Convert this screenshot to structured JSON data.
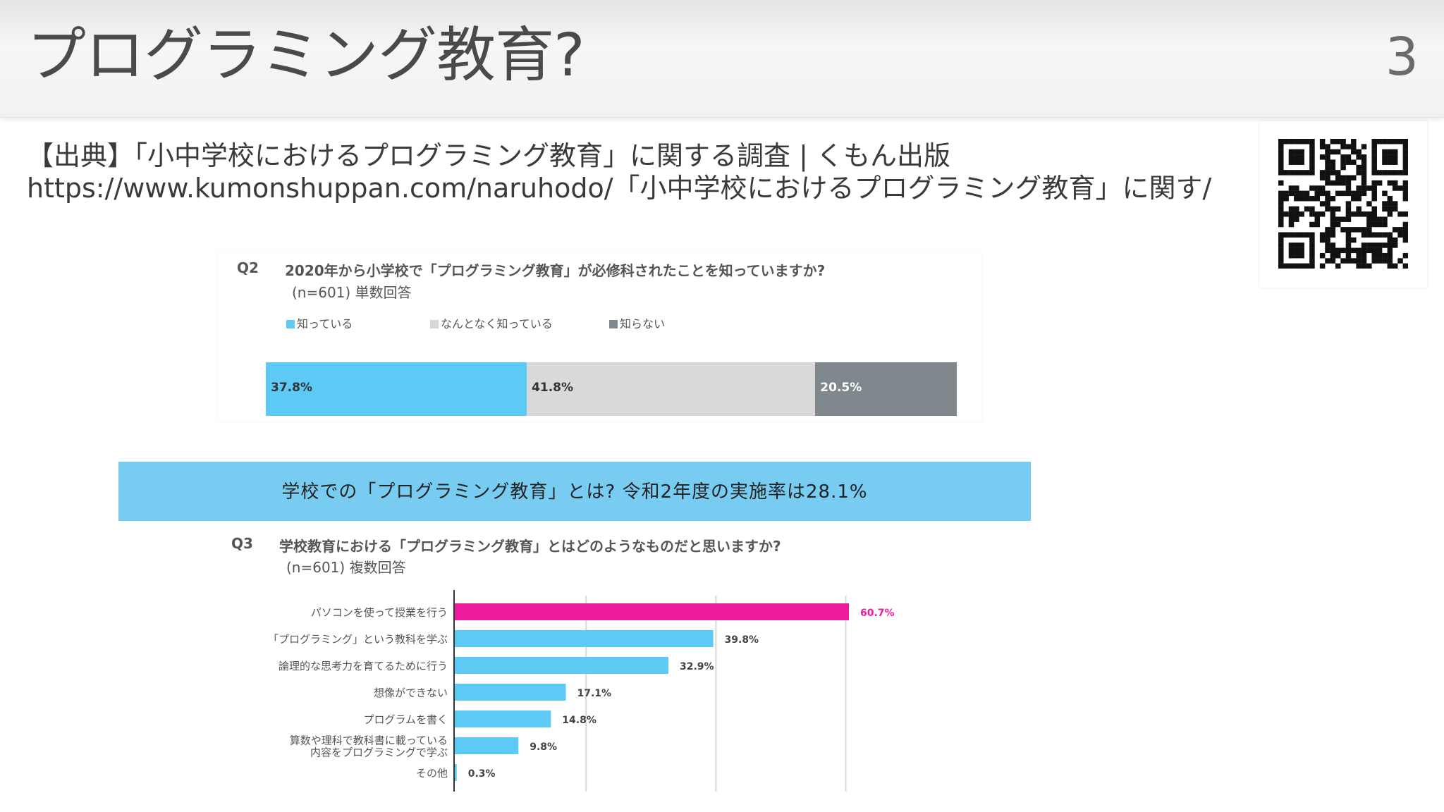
{
  "slide": {
    "title": "プログラミング教育?",
    "page_number": "3"
  },
  "source": {
    "line1": "【出典】「小中学校におけるプログラミング教育」に関する調査 | くもん出版",
    "line2": "https://www.kumonshuppan.com/naruhodo/「小中学校におけるプログラミング教育」に関す/"
  },
  "qr": {
    "icon": "qr-code-icon"
  },
  "chart_data": [
    {
      "type": "bar",
      "orientation": "horizontal-stacked",
      "question_label": "Q2",
      "title": "2020年から小学校で「プログラミング教育」が必修科されたことを知っていますか?",
      "subtitle": "(n=601) 単数回答",
      "legend_position": "top-left",
      "series": [
        {
          "name": "知っている",
          "value": 37.8,
          "label": "37.8%",
          "color": "#5ccaf5"
        },
        {
          "name": "なんとなく知っている",
          "value": 41.8,
          "label": "41.8%",
          "color": "#d9d9d9"
        },
        {
          "name": "知らない",
          "value": 20.5,
          "label": "20.5%",
          "color": "#7f888c"
        }
      ]
    },
    {
      "type": "bar",
      "orientation": "horizontal",
      "banner": "学校での「プログラミング教育」とは? 令和2年度の実施率は28.1%",
      "question_label": "Q3",
      "title": "学校教育における「プログラミング教育」とはどのようなものだと思いますか?",
      "subtitle": "(n=601) 複数回答",
      "xlim": [
        0,
        70
      ],
      "grid": true,
      "categories": [
        [
          "パソコンを使って授業を行う"
        ],
        [
          "「プログラミング」という教科を学ぶ"
        ],
        [
          "論理的な思考力を育てるために行う"
        ],
        [
          "想像ができない"
        ],
        [
          "プログラムを書く"
        ],
        [
          "算数や理科で教科書に載っている",
          "内容をプログラミングで学ぶ"
        ],
        [
          "その他"
        ]
      ],
      "values": [
        60.7,
        39.8,
        32.9,
        17.1,
        14.8,
        9.8,
        0.3
      ],
      "value_labels": [
        "60.7%",
        "39.8%",
        "32.9%",
        "17.1%",
        "14.8%",
        "9.8%",
        "0.3%"
      ],
      "colors": [
        "#ee1c9c",
        "#5ccaf5",
        "#5ccaf5",
        "#5ccaf5",
        "#5ccaf5",
        "#5ccaf5",
        "#5ccaf5"
      ],
      "highlight_label_color": "#ee1c9c"
    }
  ]
}
